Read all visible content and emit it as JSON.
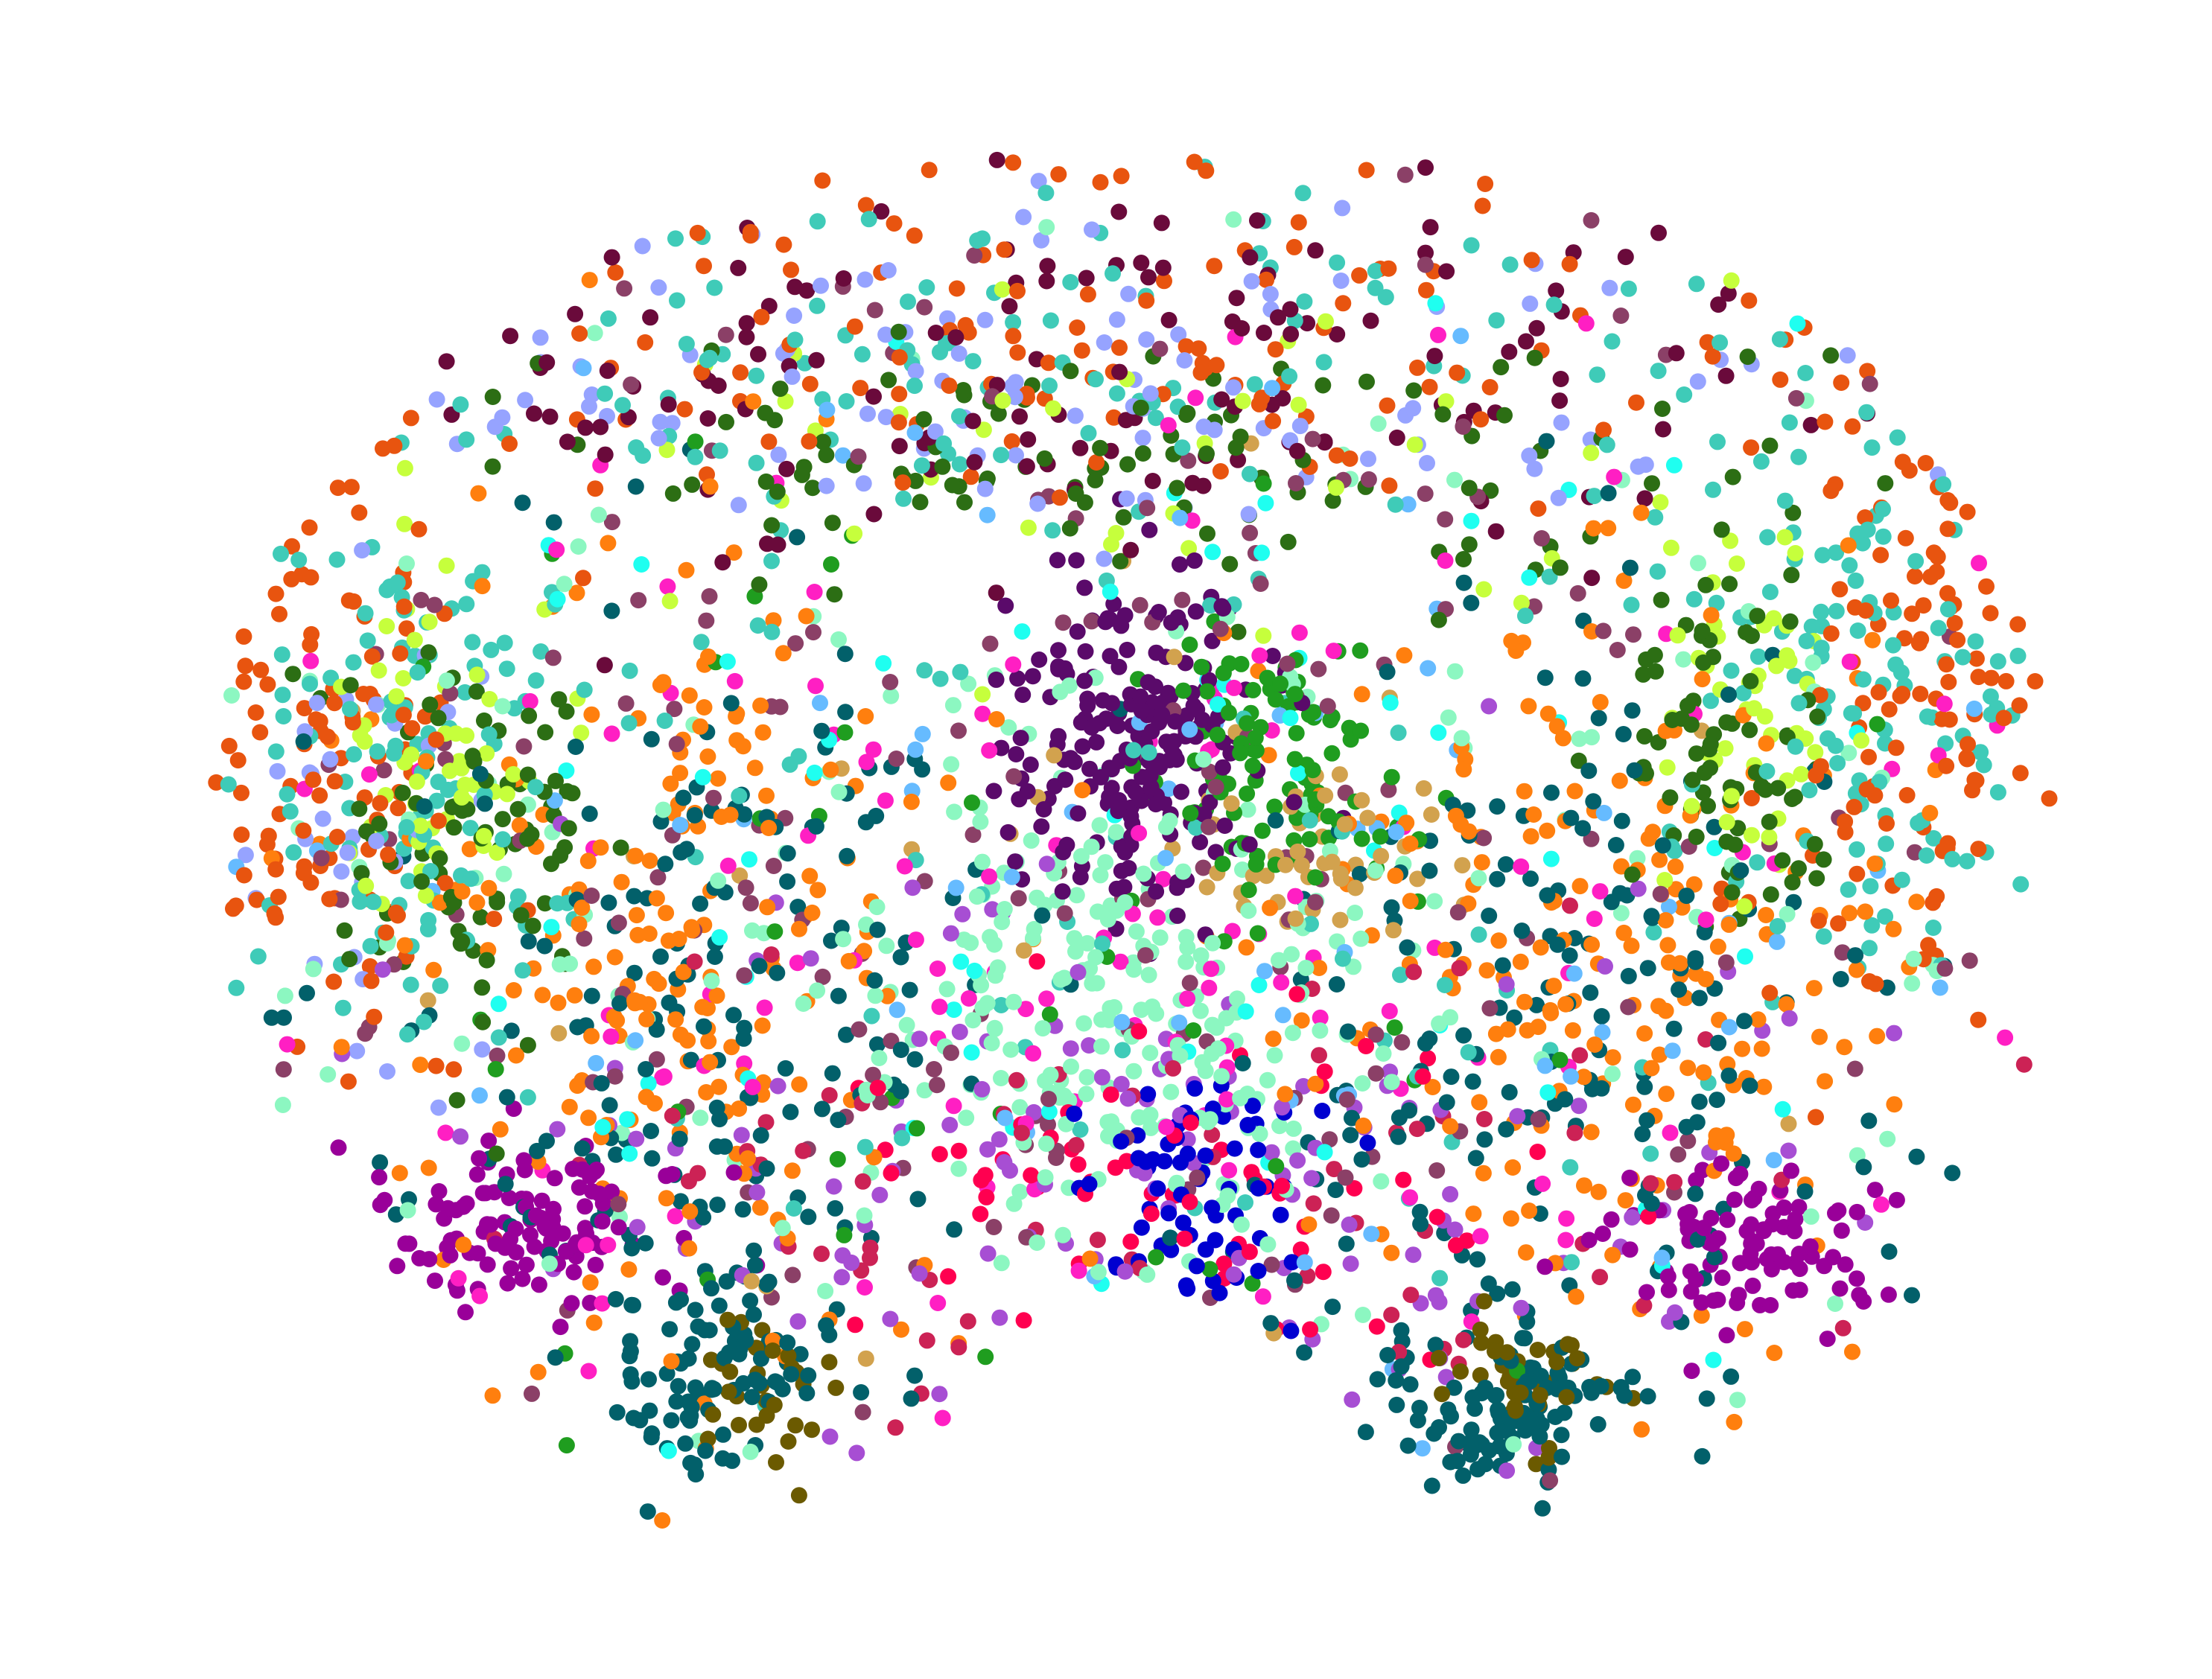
{
  "chart_data": {
    "type": "scatter",
    "title": "",
    "xlabel": "",
    "ylabel": "",
    "axes_visible": false,
    "grid": false,
    "legend": "none",
    "xlim": [
      0,
      1000
    ],
    "ylim": [
      0,
      760
    ],
    "background": "#ffffff",
    "shape_outline": [
      [
        40,
        390
      ],
      [
        52,
        300
      ],
      [
        90,
        215
      ],
      [
        150,
        150
      ],
      [
        235,
        92
      ],
      [
        330,
        52
      ],
      [
        420,
        30
      ],
      [
        490,
        25
      ],
      [
        520,
        55
      ],
      [
        545,
        28
      ],
      [
        620,
        30
      ],
      [
        710,
        50
      ],
      [
        800,
        88
      ],
      [
        880,
        145
      ],
      [
        930,
        215
      ],
      [
        960,
        300
      ],
      [
        968,
        390
      ],
      [
        960,
        470
      ],
      [
        935,
        550
      ],
      [
        890,
        620
      ],
      [
        820,
        680
      ],
      [
        740,
        715
      ],
      [
        660,
        720
      ],
      [
        600,
        650
      ],
      [
        560,
        615
      ],
      [
        515,
        600
      ],
      [
        480,
        605
      ],
      [
        445,
        625
      ],
      [
        400,
        690
      ],
      [
        330,
        728
      ],
      [
        260,
        720
      ],
      [
        180,
        655
      ],
      [
        115,
        565
      ],
      [
        65,
        480
      ]
    ],
    "hole_regions": [
      {
        "cx": 400,
        "cy": 245,
        "r": 35
      },
      {
        "cx": 620,
        "cy": 245,
        "r": 38
      },
      {
        "cx": 255,
        "cy": 350,
        "r": 18
      },
      {
        "cx": 705,
        "cy": 330,
        "r": 15
      },
      {
        "cx": 510,
        "cy": 640,
        "r": 45
      },
      {
        "cx": 500,
        "cy": 560,
        "r": 16
      }
    ],
    "series": [
      {
        "color": "#e8540f",
        "weight": 5,
        "regions": [
          {
            "cx": 500,
            "cy": 120,
            "rx": 470,
            "ry": 110,
            "w": 4
          },
          {
            "cx": 110,
            "cy": 320,
            "rx": 70,
            "ry": 150,
            "w": 3
          },
          {
            "cx": 900,
            "cy": 300,
            "rx": 70,
            "ry": 160,
            "w": 3
          }
        ]
      },
      {
        "color": "#3fcbb8",
        "weight": 6,
        "regions": [
          {
            "cx": 500,
            "cy": 150,
            "rx": 450,
            "ry": 120,
            "w": 3
          },
          {
            "cx": 150,
            "cy": 330,
            "rx": 100,
            "ry": 140,
            "w": 3
          },
          {
            "cx": 860,
            "cy": 300,
            "rx": 100,
            "ry": 150,
            "w": 3
          },
          {
            "cx": 500,
            "cy": 430,
            "rx": 400,
            "ry": 220,
            "w": 2
          }
        ]
      },
      {
        "color": "#8b4067",
        "weight": 3,
        "regions": [
          {
            "cx": 500,
            "cy": 380,
            "rx": 450,
            "ry": 300,
            "w": 1
          }
        ]
      },
      {
        "color": "#02606a",
        "weight": 8,
        "regions": [
          {
            "cx": 290,
            "cy": 470,
            "rx": 160,
            "ry": 200,
            "w": 4
          },
          {
            "cx": 720,
            "cy": 470,
            "rx": 170,
            "ry": 200,
            "w": 4
          },
          {
            "cx": 300,
            "cy": 640,
            "rx": 60,
            "ry": 60,
            "w": 2
          },
          {
            "cx": 700,
            "cy": 660,
            "rx": 60,
            "ry": 45,
            "w": 2
          }
        ]
      },
      {
        "color": "#ff7f0e",
        "weight": 6,
        "regions": [
          {
            "cx": 280,
            "cy": 440,
            "rx": 150,
            "ry": 200,
            "w": 3
          },
          {
            "cx": 730,
            "cy": 440,
            "rx": 160,
            "ry": 200,
            "w": 3
          }
        ]
      },
      {
        "color": "#8cf7c1",
        "weight": 5,
        "regions": [
          {
            "cx": 500,
            "cy": 420,
            "rx": 430,
            "ry": 260,
            "w": 2
          },
          {
            "cx": 500,
            "cy": 470,
            "rx": 120,
            "ry": 100,
            "w": 2
          }
        ]
      },
      {
        "color": "#2c6e14",
        "weight": 4,
        "regions": [
          {
            "cx": 500,
            "cy": 195,
            "rx": 330,
            "ry": 70,
            "w": 3
          },
          {
            "cx": 180,
            "cy": 380,
            "rx": 60,
            "ry": 100,
            "w": 2
          },
          {
            "cx": 800,
            "cy": 330,
            "rx": 60,
            "ry": 90,
            "w": 2
          }
        ]
      },
      {
        "color": "#c6ff3c",
        "weight": 2,
        "regions": [
          {
            "cx": 500,
            "cy": 190,
            "rx": 360,
            "ry": 90,
            "w": 2
          },
          {
            "cx": 160,
            "cy": 340,
            "rx": 50,
            "ry": 100,
            "w": 2
          },
          {
            "cx": 820,
            "cy": 300,
            "rx": 50,
            "ry": 90,
            "w": 2
          }
        ]
      },
      {
        "color": "#5a0a6a",
        "weight": 3,
        "regions": [
          {
            "cx": 510,
            "cy": 330,
            "rx": 65,
            "ry": 85,
            "w": 5
          }
        ]
      },
      {
        "color": "#990099",
        "weight": 3,
        "regions": [
          {
            "cx": 200,
            "cy": 570,
            "rx": 80,
            "ry": 40,
            "w": 4
          },
          {
            "cx": 810,
            "cy": 580,
            "rx": 70,
            "ry": 40,
            "w": 3
          }
        ]
      },
      {
        "color": "#ff1fc3",
        "weight": 2,
        "regions": [
          {
            "cx": 500,
            "cy": 420,
            "rx": 450,
            "ry": 290,
            "w": 1
          }
        ]
      },
      {
        "color": "#96a3ff",
        "weight": 2,
        "regions": [
          {
            "cx": 500,
            "cy": 145,
            "rx": 380,
            "ry": 90,
            "w": 3
          },
          {
            "cx": 120,
            "cy": 380,
            "rx": 60,
            "ry": 120,
            "w": 1
          }
        ]
      },
      {
        "color": "#ff0050",
        "weight": 1,
        "regions": [
          {
            "cx": 510,
            "cy": 560,
            "rx": 150,
            "ry": 80,
            "w": 3
          }
        ]
      },
      {
        "color": "#0000d0",
        "weight": 1,
        "regions": [
          {
            "cx": 530,
            "cy": 560,
            "rx": 60,
            "ry": 70,
            "w": 3
          }
        ]
      },
      {
        "color": "#1f9d1f",
        "weight": 2,
        "regions": [
          {
            "cx": 500,
            "cy": 430,
            "rx": 350,
            "ry": 260,
            "w": 1
          },
          {
            "cx": 580,
            "cy": 330,
            "rx": 60,
            "ry": 80,
            "w": 2
          }
        ]
      },
      {
        "color": "#a74ed3",
        "weight": 2,
        "regions": [
          {
            "cx": 500,
            "cy": 560,
            "rx": 350,
            "ry": 150,
            "w": 1
          }
        ]
      },
      {
        "color": "#6b5a00",
        "weight": 1,
        "regions": [
          {
            "cx": 320,
            "cy": 650,
            "rx": 40,
            "ry": 40,
            "w": 2
          },
          {
            "cx": 700,
            "cy": 650,
            "rx": 40,
            "ry": 30,
            "w": 2
          }
        ]
      },
      {
        "color": "#66bbff",
        "weight": 1,
        "regions": [
          {
            "cx": 500,
            "cy": 420,
            "rx": 450,
            "ry": 280,
            "w": 1
          }
        ]
      },
      {
        "color": "#d2a24e",
        "weight": 1,
        "regions": [
          {
            "cx": 600,
            "cy": 380,
            "rx": 60,
            "ry": 50,
            "w": 2
          },
          {
            "cx": 500,
            "cy": 430,
            "rx": 400,
            "ry": 250,
            "w": 1
          }
        ]
      },
      {
        "color": "#6a0a3b",
        "weight": 2,
        "regions": [
          {
            "cx": 500,
            "cy": 140,
            "rx": 420,
            "ry": 100,
            "w": 2
          }
        ]
      },
      {
        "color": "#1ffff0",
        "weight": 1,
        "regions": [
          {
            "cx": 500,
            "cy": 420,
            "rx": 400,
            "ry": 260,
            "w": 1
          }
        ]
      },
      {
        "color": "#cc2255",
        "weight": 1,
        "regions": [
          {
            "cx": 500,
            "cy": 560,
            "rx": 400,
            "ry": 150,
            "w": 1
          }
        ]
      }
    ],
    "total_points": 4300,
    "seed": 20240607
  }
}
